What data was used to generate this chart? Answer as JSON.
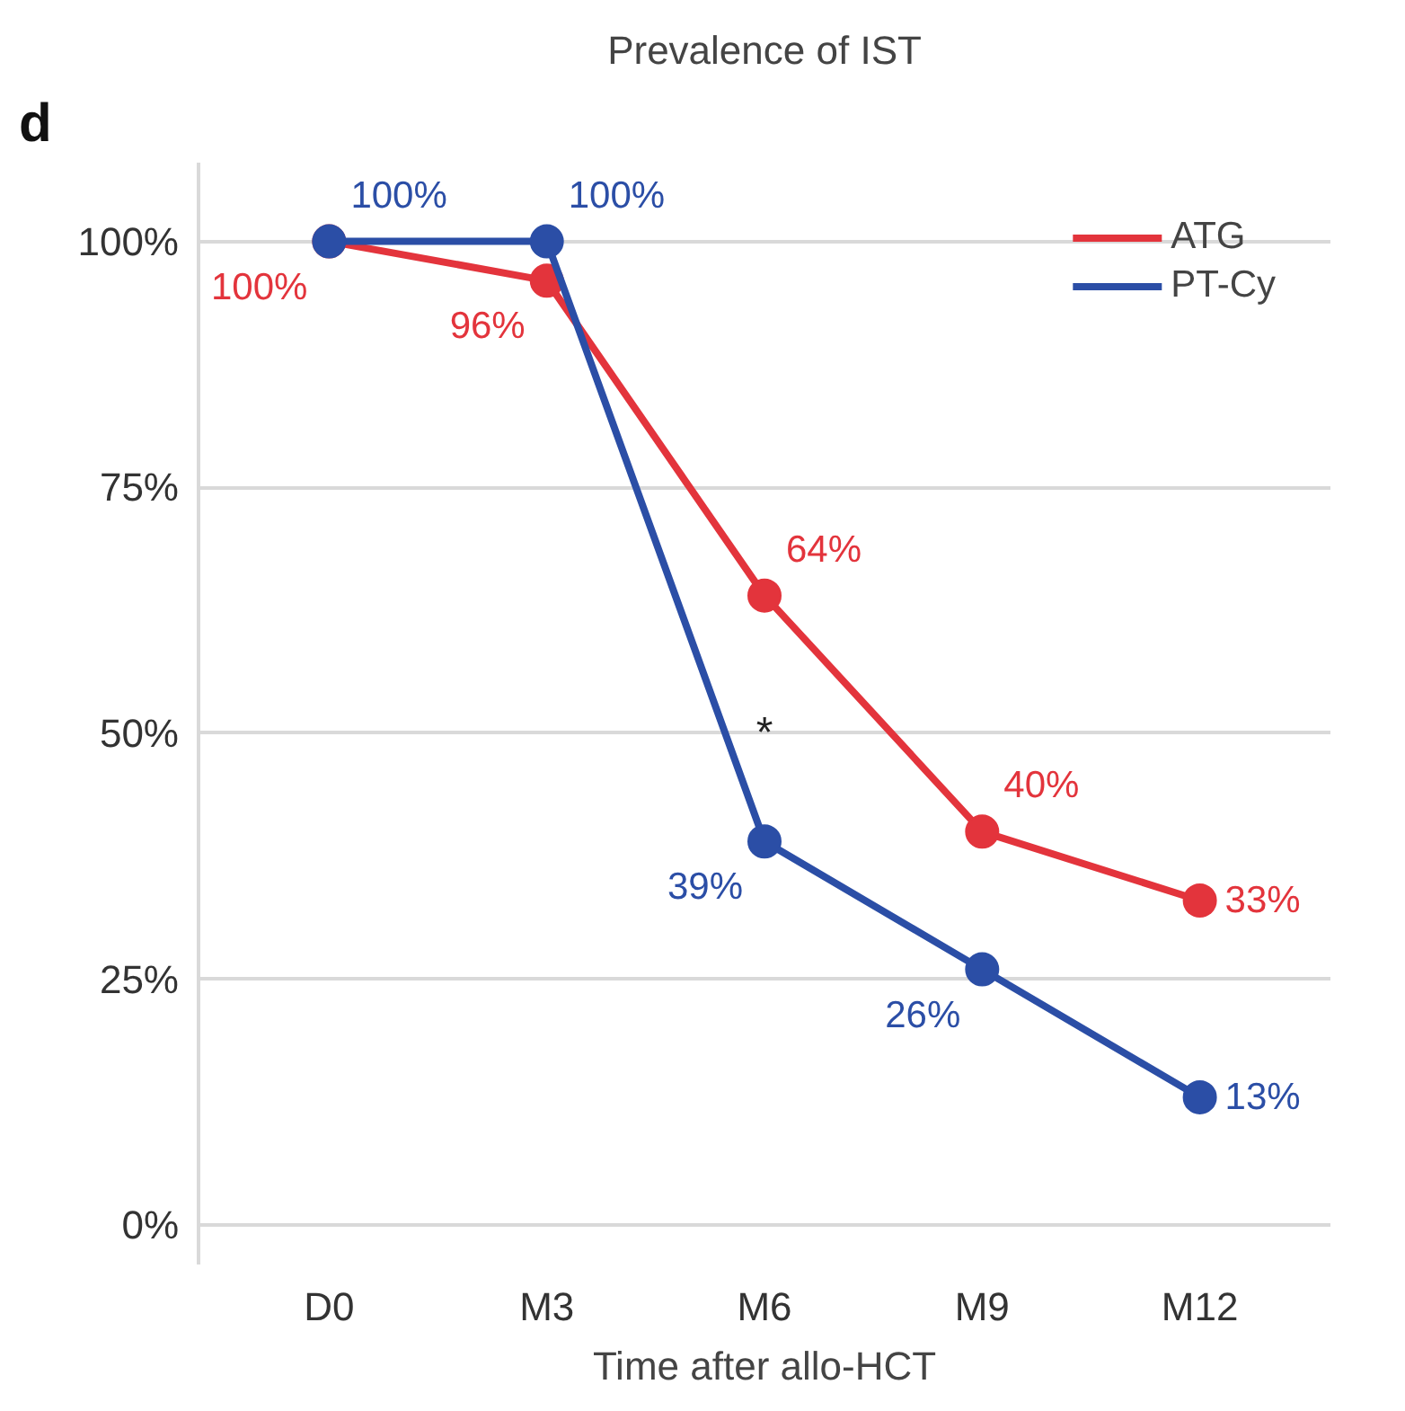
{
  "chart_data": {
    "type": "line",
    "title": "Prevalence of IST",
    "xlabel": "Time after allo-HCT",
    "categories": [
      "D0",
      "M3",
      "M6",
      "M9",
      "M12"
    ],
    "series": [
      {
        "name": "ATG",
        "color": "#e3343c",
        "values": [
          100,
          96,
          64,
          40,
          33
        ],
        "value_labels": [
          "100%",
          "96%",
          "64%",
          "40%",
          "33%"
        ]
      },
      {
        "name": "PT-Cy",
        "color": "#2b4ea6",
        "values": [
          100,
          100,
          39,
          26,
          13
        ],
        "value_labels": [
          "100%",
          "100%",
          "39%",
          "26%",
          "13%"
        ]
      }
    ],
    "ylim": [
      -4,
      108
    ],
    "yticks": [
      {
        "value": 0,
        "label": "0%"
      },
      {
        "value": 25,
        "label": "25%"
      },
      {
        "value": 50,
        "label": "50%"
      },
      {
        "value": 75,
        "label": "75%"
      },
      {
        "value": 100,
        "label": "100%"
      }
    ],
    "annotations": [
      "d",
      "*"
    ],
    "grid": "y",
    "legend": "top right",
    "marker": "circle",
    "line_style": "solid"
  }
}
